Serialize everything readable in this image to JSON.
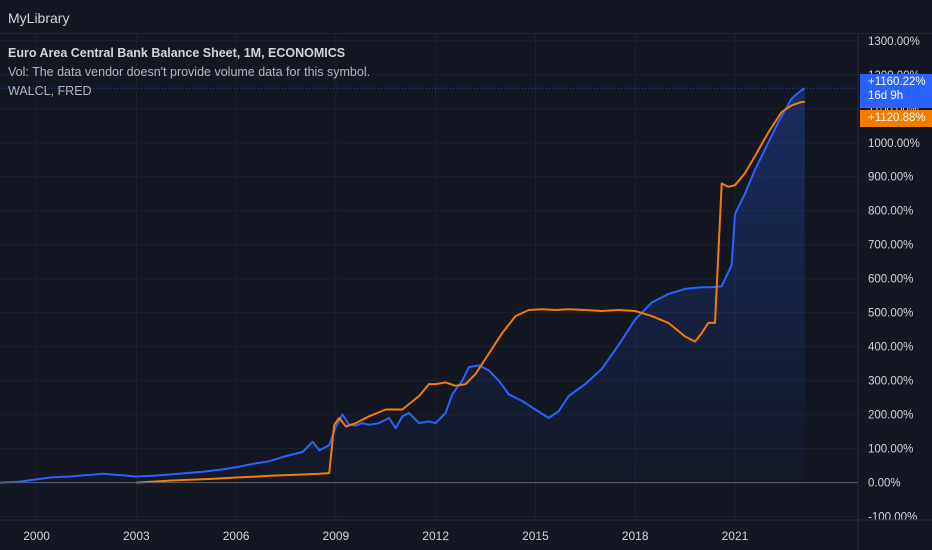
{
  "app": {
    "title": "MyLibrary"
  },
  "legend": {
    "title": "Euro Area Central Bank Balance Sheet, 1M, ECONOMICS",
    "volume_note": "Vol: The data vendor doesn't provide volume data for this symbol.",
    "compare_symbol": "WALCL, FRED"
  },
  "price_tags": {
    "blue_value": "+1160.22%",
    "blue_countdown": "16d 9h",
    "orange_value": "+1120.88%"
  },
  "colors": {
    "background": "#131722",
    "grid": "#1e222d",
    "blue_series": "#2962ff",
    "orange_series": "#f57c00",
    "axis_text": "#d1d4dc"
  },
  "chart_data": {
    "type": "line",
    "x_axis": {
      "ticks": [
        "2000",
        "2003",
        "2006",
        "2009",
        "2012",
        "2015",
        "2018",
        "2021"
      ],
      "range": [
        1998.9,
        2024.7
      ]
    },
    "y_axis": {
      "unit": "%",
      "ticks": [
        "-100.00%",
        "0.00%",
        "100.00%",
        "200.00%",
        "300.00%",
        "400.00%",
        "500.00%",
        "600.00%",
        "700.00%",
        "800.00%",
        "900.00%",
        "1000.00%",
        "1100.00%",
        "1200.00%",
        "1300.00%"
      ],
      "range": [
        -110,
        1320
      ],
      "zero_line": 0
    },
    "grid": true,
    "series": [
      {
        "name": "Euro Area Central Bank Balance Sheet",
        "color": "#2962ff",
        "area_fill": true,
        "last_value": 1160.22,
        "points": [
          [
            1998.9,
            0
          ],
          [
            1999.5,
            3
          ],
          [
            2000.0,
            10
          ],
          [
            2000.5,
            16
          ],
          [
            2001.0,
            18
          ],
          [
            2001.5,
            22
          ],
          [
            2002.0,
            26
          ],
          [
            2002.5,
            22
          ],
          [
            2003.0,
            18
          ],
          [
            2003.5,
            20
          ],
          [
            2004.0,
            24
          ],
          [
            2004.5,
            28
          ],
          [
            2005.0,
            32
          ],
          [
            2005.5,
            38
          ],
          [
            2006.0,
            45
          ],
          [
            2006.5,
            55
          ],
          [
            2007.0,
            63
          ],
          [
            2007.5,
            78
          ],
          [
            2008.0,
            90
          ],
          [
            2008.3,
            120
          ],
          [
            2008.5,
            95
          ],
          [
            2008.8,
            110
          ],
          [
            2009.0,
            165
          ],
          [
            2009.2,
            200
          ],
          [
            2009.4,
            170
          ],
          [
            2009.6,
            168
          ],
          [
            2009.8,
            175
          ],
          [
            2010.0,
            170
          ],
          [
            2010.3,
            175
          ],
          [
            2010.6,
            190
          ],
          [
            2010.8,
            160
          ],
          [
            2011.0,
            195
          ],
          [
            2011.2,
            205
          ],
          [
            2011.5,
            175
          ],
          [
            2011.8,
            180
          ],
          [
            2012.0,
            175
          ],
          [
            2012.3,
            205
          ],
          [
            2012.5,
            260
          ],
          [
            2012.8,
            300
          ],
          [
            2013.0,
            340
          ],
          [
            2013.3,
            345
          ],
          [
            2013.6,
            330
          ],
          [
            2013.9,
            300
          ],
          [
            2014.2,
            260
          ],
          [
            2014.6,
            240
          ],
          [
            2015.0,
            215
          ],
          [
            2015.4,
            190
          ],
          [
            2015.7,
            210
          ],
          [
            2016.0,
            255
          ],
          [
            2016.5,
            290
          ],
          [
            2017.0,
            335
          ],
          [
            2017.5,
            405
          ],
          [
            2018.0,
            480
          ],
          [
            2018.5,
            530
          ],
          [
            2019.0,
            555
          ],
          [
            2019.5,
            570
          ],
          [
            2020.0,
            575
          ],
          [
            2020.3,
            575
          ],
          [
            2020.6,
            578
          ],
          [
            2020.9,
            640
          ],
          [
            2021.0,
            790
          ],
          [
            2021.3,
            850
          ],
          [
            2021.6,
            920
          ],
          [
            2021.9,
            980
          ],
          [
            2022.3,
            1060
          ],
          [
            2022.7,
            1130
          ],
          [
            2023.0,
            1155
          ],
          [
            2023.1,
            1160
          ]
        ]
      },
      {
        "name": "WALCL, FRED",
        "color": "#f57c00",
        "area_fill": false,
        "last_value": 1120.88,
        "points": [
          [
            2003.0,
            0
          ],
          [
            2003.5,
            3
          ],
          [
            2004.0,
            6
          ],
          [
            2004.5,
            8
          ],
          [
            2005.0,
            10
          ],
          [
            2005.5,
            12
          ],
          [
            2006.0,
            15
          ],
          [
            2006.5,
            17
          ],
          [
            2007.0,
            20
          ],
          [
            2007.5,
            22
          ],
          [
            2008.0,
            24
          ],
          [
            2008.5,
            26
          ],
          [
            2008.8,
            28
          ],
          [
            2008.95,
            170
          ],
          [
            2009.1,
            190
          ],
          [
            2009.3,
            165
          ],
          [
            2009.6,
            175
          ],
          [
            2010.0,
            195
          ],
          [
            2010.5,
            215
          ],
          [
            2011.0,
            215
          ],
          [
            2011.5,
            255
          ],
          [
            2011.8,
            290
          ],
          [
            2012.0,
            290
          ],
          [
            2012.3,
            295
          ],
          [
            2012.6,
            285
          ],
          [
            2012.9,
            290
          ],
          [
            2013.2,
            320
          ],
          [
            2013.6,
            380
          ],
          [
            2014.0,
            440
          ],
          [
            2014.4,
            490
          ],
          [
            2014.8,
            508
          ],
          [
            2015.2,
            510
          ],
          [
            2015.6,
            508
          ],
          [
            2016.0,
            510
          ],
          [
            2016.5,
            508
          ],
          [
            2017.0,
            505
          ],
          [
            2017.5,
            508
          ],
          [
            2018.0,
            505
          ],
          [
            2018.5,
            490
          ],
          [
            2019.0,
            470
          ],
          [
            2019.5,
            430
          ],
          [
            2019.8,
            415
          ],
          [
            2020.0,
            440
          ],
          [
            2020.2,
            470
          ],
          [
            2020.4,
            470
          ],
          [
            2020.6,
            880
          ],
          [
            2020.8,
            870
          ],
          [
            2021.0,
            875
          ],
          [
            2021.3,
            910
          ],
          [
            2021.6,
            960
          ],
          [
            2022.0,
            1030
          ],
          [
            2022.4,
            1090
          ],
          [
            2022.7,
            1110
          ],
          [
            2023.0,
            1120
          ],
          [
            2023.1,
            1120
          ]
        ]
      }
    ],
    "last_value_guide": 1160.22
  }
}
